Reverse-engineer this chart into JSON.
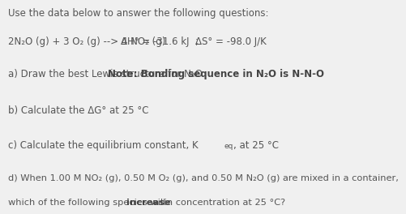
{
  "header": "Use the data below to answer the following questions:",
  "reaction": "2N₂O (g) + 3 O₂ (g) --> 4 NO₂ (g)",
  "delta_h": "ΔH° = -31.6 kJ  ;",
  "delta_s": "ΔS° = -98.0 J/K",
  "part_a_prefix": "a) Draw the best Lewis structure for N₂O ",
  "part_a_note": "Note: Bonding sequence in N₂O is N-N-O",
  "part_b": "b) Calculate the ΔG° at 25 °C",
  "part_c_pre": "c) Calculate the equilibrium constant, K",
  "part_c_sub": "eq",
  "part_c_post": ", at 25 °C",
  "part_d1": "d) When 1.00 M NO₂ (g), 0.50 M O₂ (g), and 0.50 M N₂O (g) are mixed in a container,",
  "part_d2_pre": "which of the following species will ",
  "part_d2_bold": "increase",
  "part_d2_post": " in concentration at 25 °C?",
  "bg_color": "#f0f0f0",
  "text_color": "#555555",
  "bold_color": "#444444",
  "fs_header": 8.5,
  "fs_reaction": 8.5,
  "fs_body": 8.5,
  "fs_sub": 6.5
}
